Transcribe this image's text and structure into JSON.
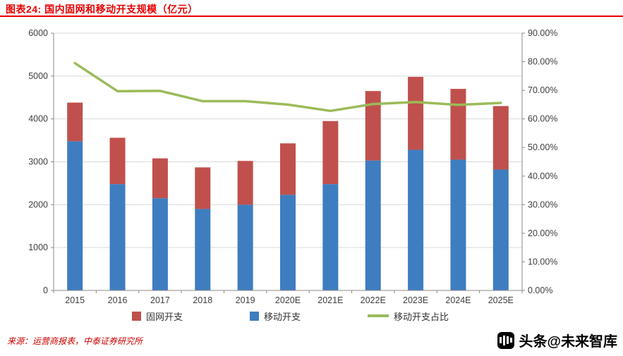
{
  "header": {
    "title": "图表24: 国内固网和移动开支规模（亿元）"
  },
  "colors": {
    "accent_red": "#e60000",
    "bar_mobile_blue": "#3e7dbf",
    "bar_fixed_red": "#c0504d",
    "line_green": "#9bbb59",
    "gridline": "#d9d9d9",
    "axis": "#898989",
    "axis_text": "#404040"
  },
  "chart_data": {
    "type": "bar",
    "subtype": "stacked-bars-with-line",
    "title": "国内固网和移动开支规模（亿元）",
    "categories": [
      "2015",
      "2016",
      "2017",
      "2018",
      "2019",
      "2020E",
      "2021E",
      "2022E",
      "2023E",
      "2024E",
      "2025E"
    ],
    "series": [
      {
        "name": "移动开支",
        "type": "bar",
        "stack": "total",
        "axis": "left",
        "color": "#3e7dbf",
        "values": [
          3480,
          2480,
          2150,
          1900,
          2000,
          2230,
          2480,
          3030,
          3280,
          3050,
          2820
        ]
      },
      {
        "name": "固网开支",
        "type": "bar",
        "stack": "total",
        "axis": "left",
        "color": "#c0504d",
        "values": [
          900,
          1080,
          930,
          970,
          1020,
          1200,
          1470,
          1620,
          1700,
          1650,
          1480
        ]
      },
      {
        "name": "移动开支占比",
        "type": "line",
        "axis": "right",
        "color": "#9bbb59",
        "values": [
          79.5,
          69.7,
          69.8,
          66.2,
          66.2,
          65.0,
          62.8,
          65.2,
          65.9,
          64.9,
          65.6
        ]
      }
    ],
    "left_axis": {
      "min": 0,
      "max": 6000,
      "step": 1000
    },
    "right_axis": {
      "min": 0,
      "max": 90,
      "step": 10,
      "format": "percent2"
    },
    "grid": true,
    "legend_position": "bottom"
  },
  "legend": {
    "items": [
      {
        "label": "固网开支",
        "color": "#c0504d",
        "marker": "square"
      },
      {
        "label": "移动开支",
        "color": "#3e7dbf",
        "marker": "square"
      },
      {
        "label": "移动开支占比",
        "color": "#9bbb59",
        "marker": "line"
      }
    ]
  },
  "footer": {
    "source": "来源：运营商报表，中泰证券研究所"
  },
  "watermark": {
    "text": "头条@未来智库"
  }
}
